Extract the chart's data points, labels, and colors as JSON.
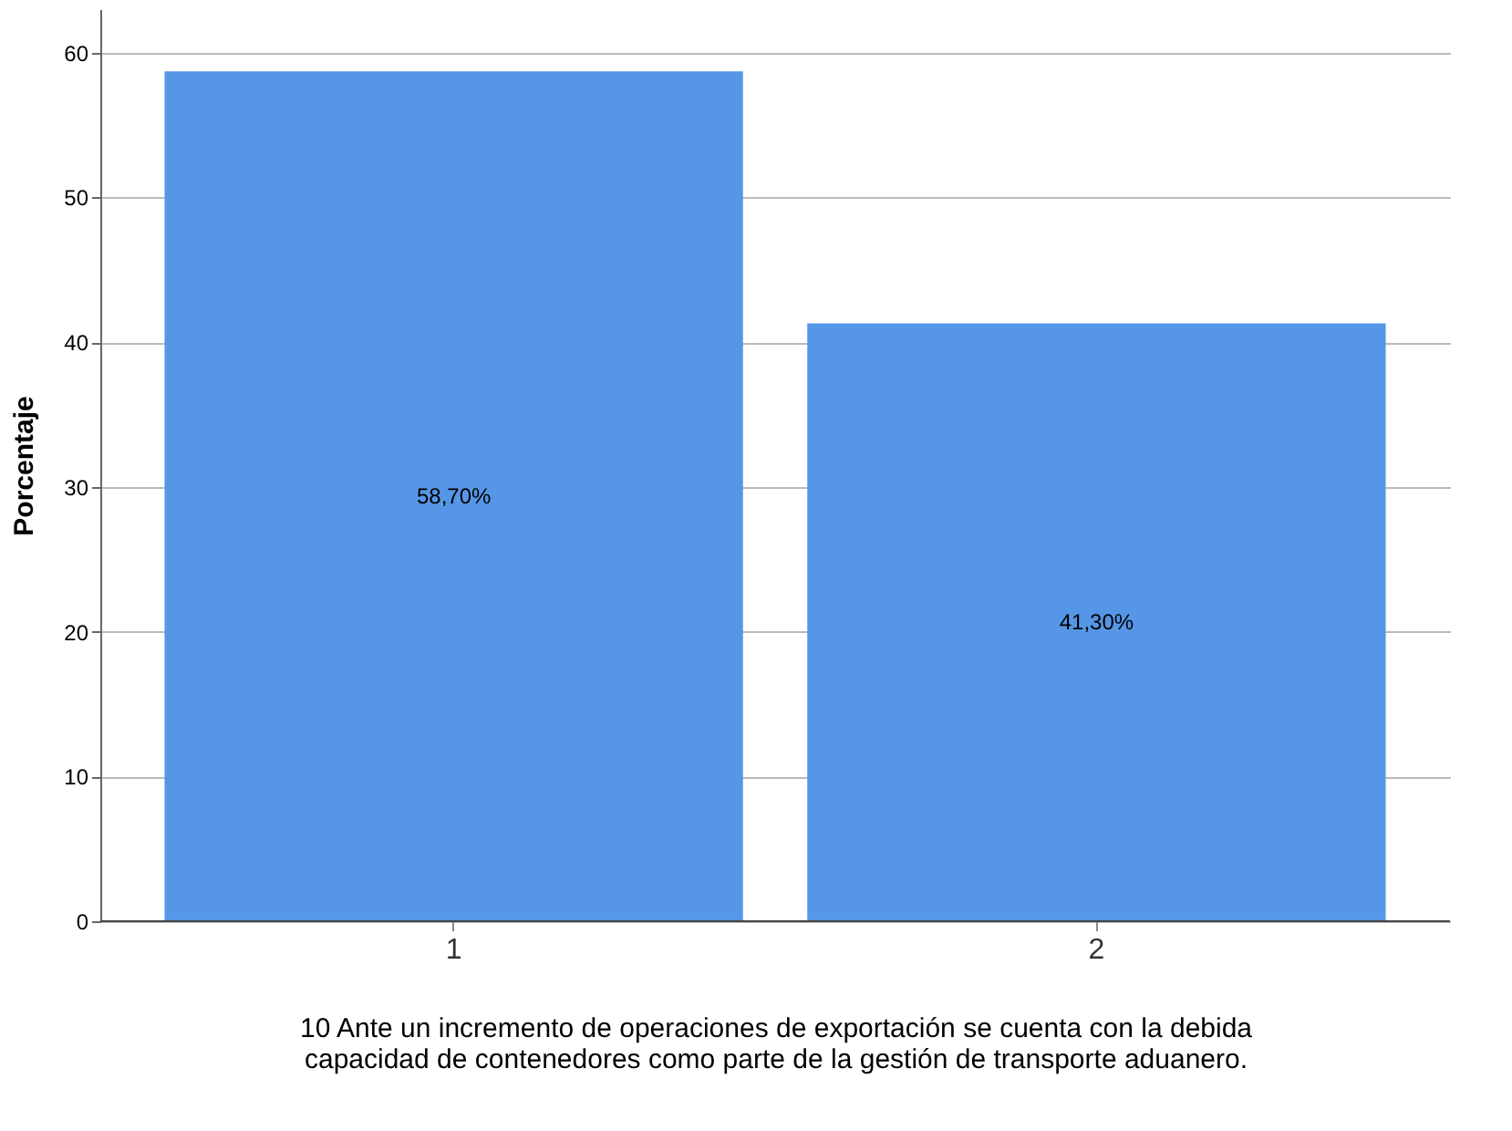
{
  "chart_data": {
    "type": "bar",
    "categories": [
      "1",
      "2"
    ],
    "values": [
      58.7,
      41.3
    ],
    "value_labels": [
      "58,70%",
      "41,30%"
    ],
    "color": "#5596e6",
    "ylim": [
      0,
      63
    ],
    "yticks": [
      0,
      10,
      20,
      30,
      40,
      50,
      60
    ],
    "ylabel": "Porcentaje",
    "xlabel": "10 Ante un incremento de operaciones de exportación se cuenta con la debida capacidad de contenedores como parte de la gestión de transporte aduanero.",
    "grid": "y"
  }
}
